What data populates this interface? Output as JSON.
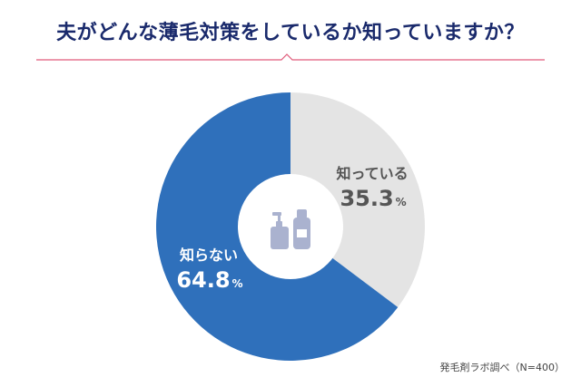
{
  "title": "夫がどんな薄毛対策をしているか知っていますか？",
  "source": "発毛剤ラボ調べ（N=400）",
  "colors": {
    "title": "#1a2a6c",
    "divider": "#e05a7a",
    "icon": "#aab2cf"
  },
  "center_icon": "shampoo-bottles-icon",
  "chart_data": {
    "type": "pie",
    "donut": true,
    "categories": [
      "知っている",
      "知らない"
    ],
    "values": [
      35.3,
      64.8
    ],
    "value_labels": [
      "35.3",
      "64.8"
    ],
    "unit": "%",
    "colors": [
      "#e4e4e4",
      "#2f70bb"
    ],
    "label_colors": [
      "#555555",
      "#ffffff"
    ]
  }
}
